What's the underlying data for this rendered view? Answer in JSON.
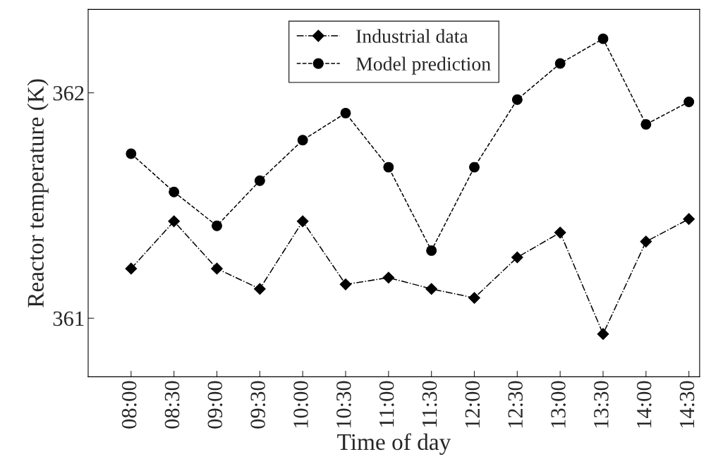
{
  "chart_data": {
    "type": "line",
    "xlabel": "Time of day",
    "ylabel": "Reactor temperature (K)",
    "categories": [
      "08:00",
      "08:30",
      "09:00",
      "09:30",
      "10:00",
      "10:30",
      "11:00",
      "11:30",
      "12:00",
      "12:30",
      "13:00",
      "13:30",
      "14:00",
      "14:30"
    ],
    "series": [
      {
        "name": "Industrial data",
        "color": "#000000",
        "marker": "diamond",
        "line_style": "dashdot",
        "values": [
          361.22,
          361.43,
          361.22,
          361.13,
          361.43,
          361.15,
          361.18,
          361.13,
          361.09,
          361.27,
          361.38,
          360.93,
          361.34,
          361.44
        ]
      },
      {
        "name": "Model prediction",
        "color": "#000000",
        "marker": "circle",
        "line_style": "dashed",
        "values": [
          361.73,
          361.56,
          361.41,
          361.61,
          361.79,
          361.91,
          361.67,
          361.3,
          361.67,
          361.97,
          362.13,
          362.24,
          361.86,
          361.96
        ]
      }
    ],
    "ylim": [
      360.74,
      362.37
    ],
    "yticks": [
      361,
      362
    ],
    "grid": false,
    "legend": "top"
  }
}
